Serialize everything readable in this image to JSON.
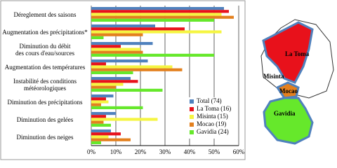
{
  "chart_data": {
    "type": "hbar",
    "categories": [
      "Déreglement des saisons",
      "Augmentation des précipitations*",
      "Diminution du débit\ndes cours d'eau/sources",
      "Augmentation des températures",
      "Instabilité des conditions\nmétéorologiques",
      "Diminution des précipitations",
      "Diminution des gelées",
      "Diminution des neiges"
    ],
    "series": [
      {
        "name": "Total (74)",
        "color": "#4f81bd",
        "values": [
          54,
          26,
          25,
          23,
          16,
          9,
          10,
          8
        ]
      },
      {
        "name": "La Toma (16)",
        "color": "#e8111b",
        "values": [
          56,
          38,
          12,
          6,
          19,
          6,
          6,
          12
        ]
      },
      {
        "name": "Misinta (15)",
        "color": "#f5f542",
        "values": [
          53,
          53,
          20,
          33,
          13,
          7,
          27,
          7
        ]
      },
      {
        "name": "Mocao (19)",
        "color": "#e3801e",
        "values": [
          58,
          21,
          21,
          37,
          10,
          4,
          5,
          16
        ]
      },
      {
        "name": "Gavidia (24)",
        "color": "#66e82b",
        "values": [
          50,
          5,
          50,
          17,
          29,
          21,
          8,
          4
        ]
      }
    ],
    "xlim": [
      0,
      60
    ],
    "xticks": [
      {
        "value": 0,
        "label": "0%"
      },
      {
        "value": 10,
        "label": "10%"
      },
      {
        "value": 20,
        "label": "20%"
      },
      {
        "value": 30,
        "label": "30%"
      },
      {
        "value": 40,
        "label": "40%"
      },
      {
        "value": 50,
        "label": "50%"
      },
      {
        "value": 60,
        "label": "60%"
      }
    ],
    "grid": true,
    "legend": "lower right"
  },
  "map": {
    "labels": [
      "La Toma",
      "Misinta",
      "Mocao",
      "Gavidia"
    ]
  }
}
